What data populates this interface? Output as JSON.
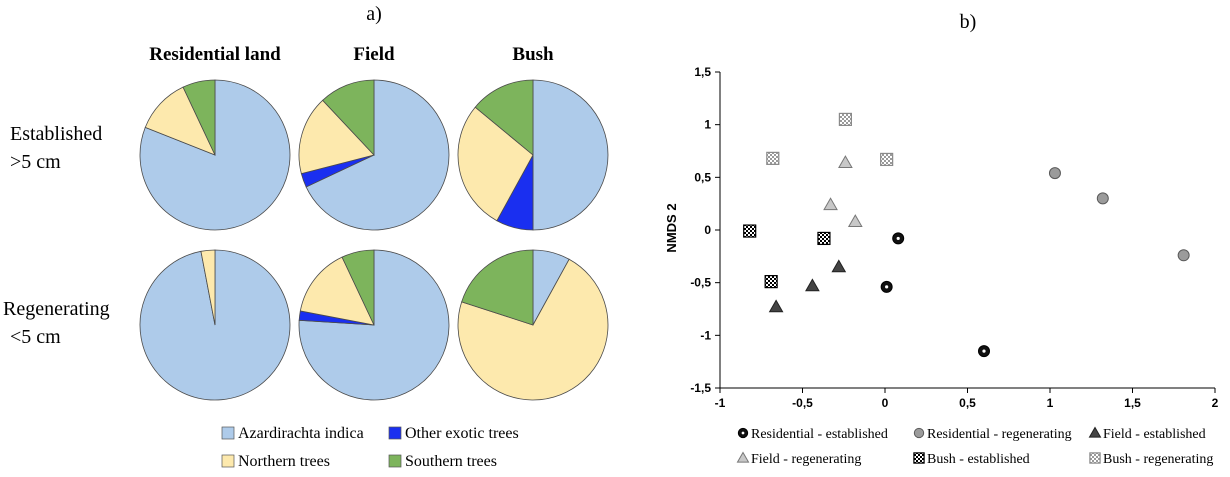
{
  "chart_data": [
    {
      "type": "pie",
      "panel_label": "a)",
      "columns": [
        "Residential land",
        "Field",
        "Bush"
      ],
      "rows": [
        {
          "line1": "Established",
          "line2": ">5 cm"
        },
        {
          "line1": "Regenerating",
          "line2": "<5 cm"
        }
      ],
      "categories": [
        "Azardirachta indica",
        "Other exotic trees",
        "Northern trees",
        "Southern trees"
      ],
      "colors": [
        "#aecbea",
        "#1a2ff0",
        "#fde9ad",
        "#7db45c"
      ],
      "pies": [
        {
          "row": 0,
          "col": 0,
          "values": [
            81,
            0,
            12,
            7
          ]
        },
        {
          "row": 0,
          "col": 1,
          "values": [
            68,
            3,
            17,
            12
          ]
        },
        {
          "row": 0,
          "col": 2,
          "values": [
            50,
            8,
            28,
            14
          ]
        },
        {
          "row": 1,
          "col": 0,
          "values": [
            97,
            0,
            3,
            0
          ]
        },
        {
          "row": 1,
          "col": 1,
          "values": [
            76,
            2,
            15,
            7
          ]
        },
        {
          "row": 1,
          "col": 2,
          "values": [
            8,
            0,
            72,
            20
          ]
        }
      ]
    },
    {
      "type": "scatter",
      "panel_label": "b)",
      "ylabel": "NMDS 2",
      "xlim": [
        -1,
        2
      ],
      "ylim": [
        -1.5,
        1.5
      ],
      "xticks": [
        -1,
        -0.5,
        0,
        0.5,
        1,
        1.5,
        2
      ],
      "xtick_labels": [
        "-1",
        "-0,5",
        "0",
        "0,5",
        "1",
        "1,5",
        "2"
      ],
      "yticks": [
        1.5,
        1,
        0.5,
        0,
        -0.5,
        -1,
        -1.5
      ],
      "ytick_labels": [
        "1,5",
        "1",
        "0,5",
        "0",
        "-0,5",
        "-1",
        "-1,5"
      ],
      "series": [
        {
          "name": "Residential - established",
          "marker": "circle-dark",
          "points": [
            [
              0.08,
              -0.08
            ],
            [
              0.01,
              -0.54
            ],
            [
              0.6,
              -1.15
            ]
          ]
        },
        {
          "name": "Residential - regenerating",
          "marker": "circle-gray",
          "points": [
            [
              1.03,
              0.54
            ],
            [
              1.32,
              0.3
            ],
            [
              1.81,
              -0.24
            ]
          ]
        },
        {
          "name": "Field - established",
          "marker": "triangle-dark",
          "points": [
            [
              -0.28,
              -0.35
            ],
            [
              -0.44,
              -0.53
            ],
            [
              -0.66,
              -0.73
            ]
          ]
        },
        {
          "name": "Field - regenerating",
          "marker": "triangle-gray",
          "points": [
            [
              -0.24,
              0.64
            ],
            [
              -0.33,
              0.24
            ],
            [
              -0.18,
              0.08
            ]
          ]
        },
        {
          "name": "Bush - established",
          "marker": "square-check-dark",
          "points": [
            [
              -0.82,
              -0.01
            ],
            [
              -0.69,
              -0.49
            ],
            [
              -0.37,
              -0.08
            ]
          ]
        },
        {
          "name": "Bush - regenerating",
          "marker": "square-check-light",
          "points": [
            [
              -0.24,
              1.05
            ],
            [
              -0.68,
              0.68
            ],
            [
              0.01,
              0.67
            ]
          ]
        }
      ]
    }
  ]
}
